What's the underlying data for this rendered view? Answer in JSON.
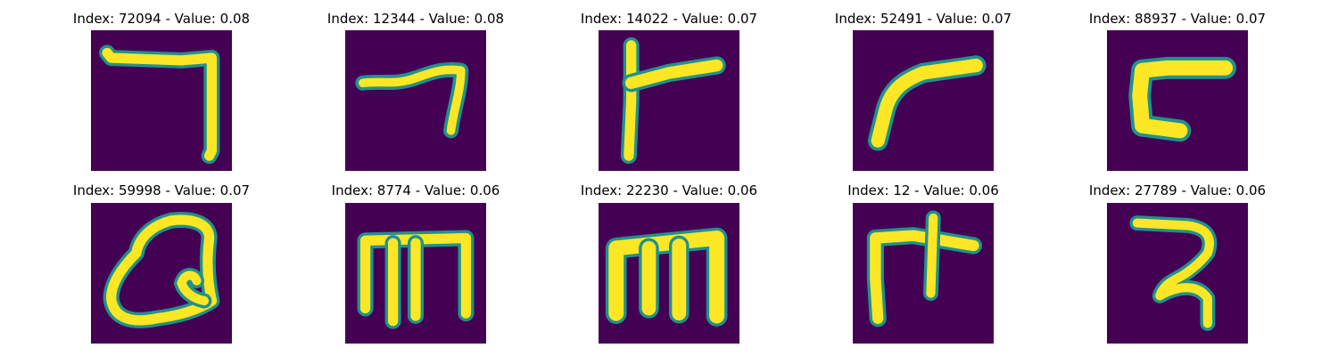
{
  "colors": {
    "background": "#440154",
    "mid_teal": "#21918c",
    "stroke_yellow": "#fde725"
  },
  "panels": [
    {
      "title": "Index: 72094 - Value: 0.08",
      "index": 72094,
      "value": 0.08
    },
    {
      "title": "Index: 12344 - Value: 0.08",
      "index": 12344,
      "value": 0.08
    },
    {
      "title": "Index: 14022 - Value: 0.07",
      "index": 14022,
      "value": 0.07
    },
    {
      "title": "Index: 52491 - Value: 0.07",
      "index": 52491,
      "value": 0.07
    },
    {
      "title": "Index: 88937 - Value: 0.07",
      "index": 88937,
      "value": 0.07
    },
    {
      "title": "Index: 59998 - Value: 0.07",
      "index": 59998,
      "value": 0.07
    },
    {
      "title": "Index: 8774 - Value: 0.06",
      "index": 8774,
      "value": 0.06
    },
    {
      "title": "Index: 22230 - Value: 0.06",
      "index": 22230,
      "value": 0.06
    },
    {
      "title": "Index: 12 - Value: 0.06",
      "index": 12,
      "value": 0.06
    },
    {
      "title": "Index: 27789 - Value: 0.06",
      "index": 27789,
      "value": 0.06
    }
  ]
}
